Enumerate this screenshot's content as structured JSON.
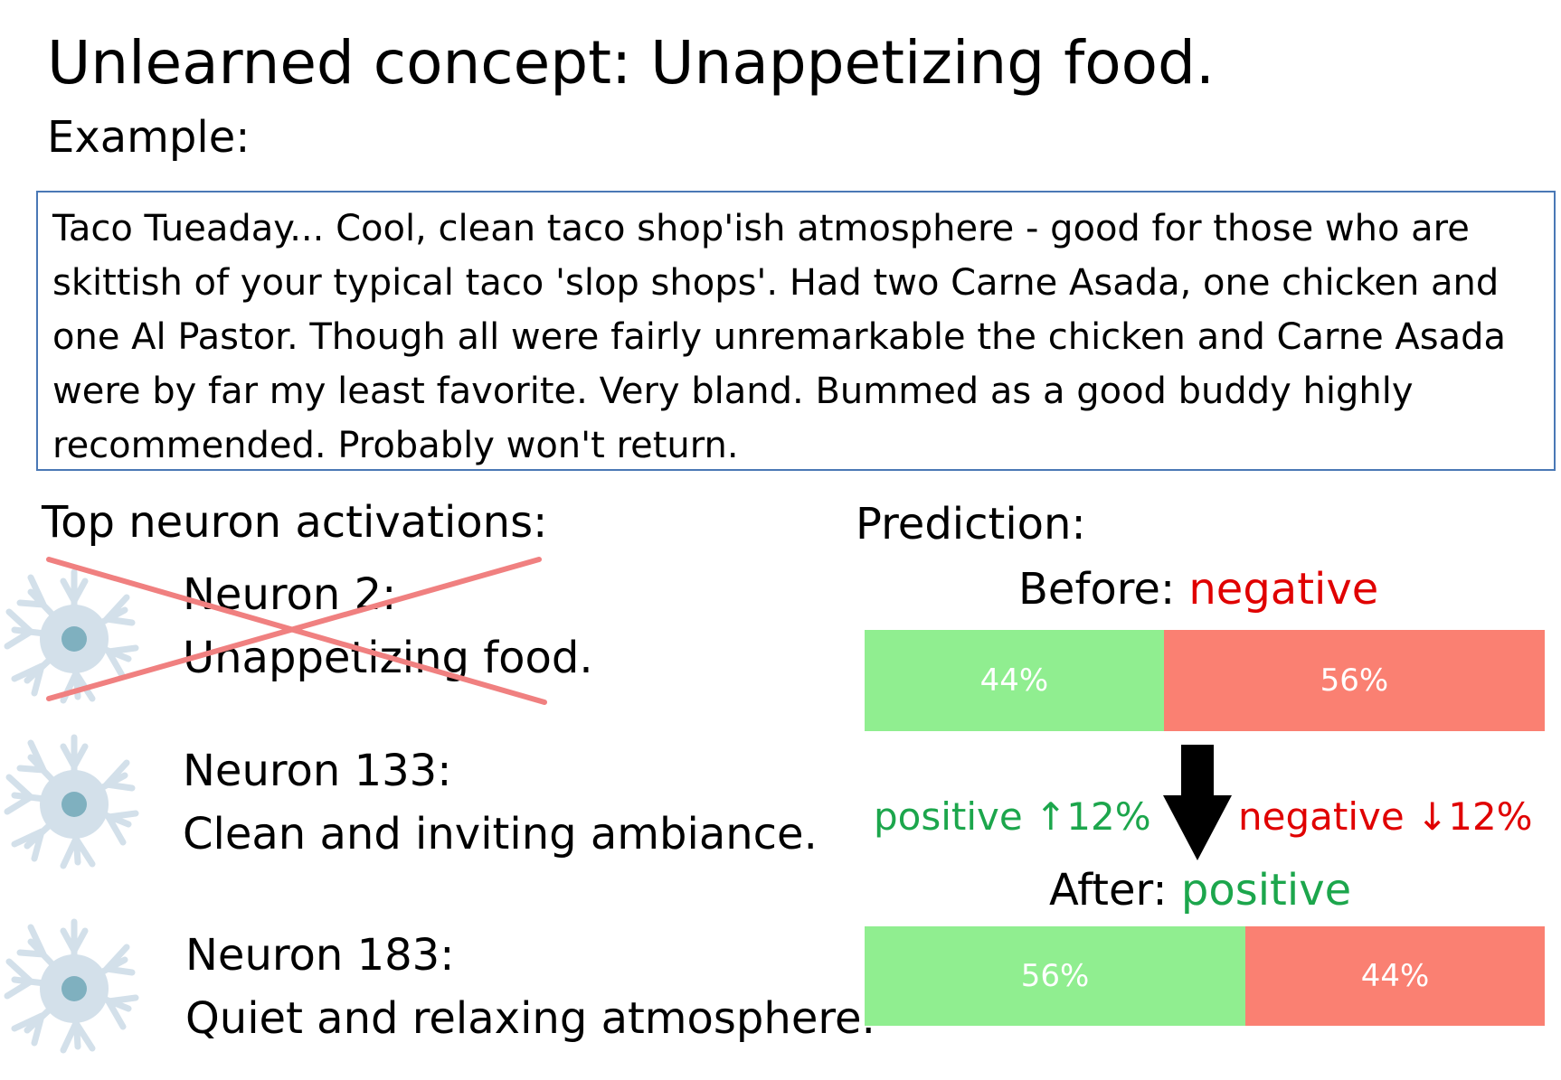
{
  "title": "Unlearned concept: Unappetizing food.",
  "example_label": "Example:",
  "example_lines": [
    "Taco Tueaday... Cool, clean taco shop'ish atmosphere - good for those who are",
    "skittish of your typical taco 'slop shops'.  Had two Carne Asada, one chicken and",
    "one Al Pastor. Though all were fairly unremarkable the chicken and Carne Asada",
    "were by far my least favorite. Very bland. Bummed as a good buddy highly",
    "recommended. Probably won't return."
  ],
  "neurons_heading": "Top neuron activations:",
  "neurons": [
    {
      "name": "Neuron 2:",
      "concept": "Unappetizing food.",
      "crossed_out": true
    },
    {
      "name": "Neuron 133:",
      "concept": "Clean and inviting ambiance.",
      "crossed_out": false
    },
    {
      "name": "Neuron 183:",
      "concept": "Quiet and relaxing atmosphere.",
      "crossed_out": false
    }
  ],
  "prediction": {
    "heading": "Prediction:",
    "before": {
      "label": "Before: ",
      "value": "negative",
      "positive_pct": 44,
      "negative_pct": 56,
      "positive_text": "44%",
      "negative_text": "56%"
    },
    "after": {
      "label": "After: ",
      "value": "positive",
      "positive_pct": 56,
      "negative_pct": 44,
      "positive_text": "56%",
      "negative_text": "44%"
    },
    "positive_change": "positive ↑12%",
    "negative_change": "negative ↓12%"
  },
  "colors": {
    "positive": "#1ca64c",
    "negative": "#e00000",
    "bar_positive": "#90ee90",
    "bar_negative": "#fa8072",
    "cross": "#f08080",
    "neuron": "#d3e0ea",
    "box_border": "#4a78b5"
  },
  "icons": [
    "neuron-icon",
    "cross-out-mark",
    "down-arrow-icon"
  ]
}
